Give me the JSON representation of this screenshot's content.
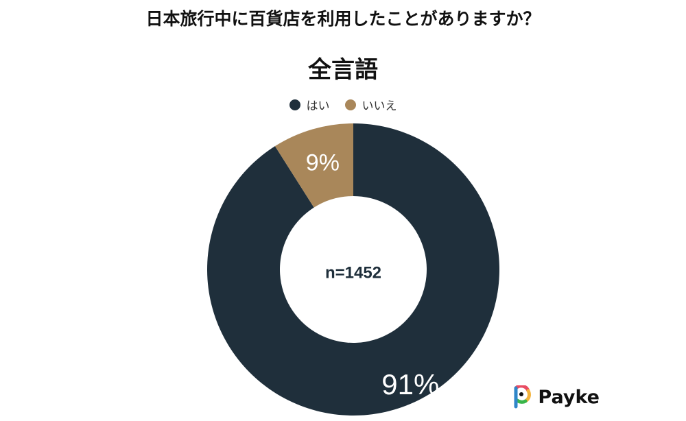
{
  "question": "日本旅行中に百貨店を利用したことがありますか？",
  "subtitle": "全言語",
  "center_label": "n=1452",
  "brand": "Payke",
  "colors": {
    "yes": "#1f2f3b",
    "no": "#a9875a"
  },
  "chart_data": {
    "type": "pie",
    "title": "全言語",
    "categories": [
      "はい",
      "いいえ"
    ],
    "values": [
      91,
      9
    ],
    "labels": [
      "91%",
      "9%"
    ],
    "legend": "top-center",
    "center_text": "n=1452"
  }
}
